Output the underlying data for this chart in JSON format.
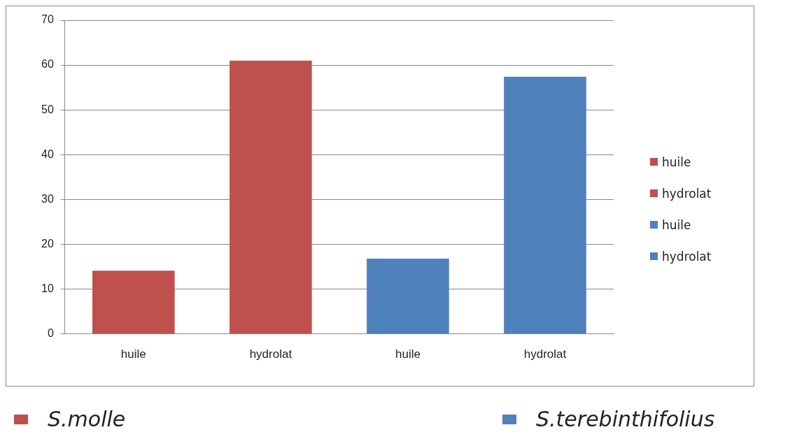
{
  "chart_data": {
    "type": "bar",
    "categories": [
      "huile",
      "hydrolat",
      "huile",
      "hydrolat"
    ],
    "series": [
      {
        "name": "S.molle",
        "color": "#c0504d",
        "values": [
          14.1,
          61,
          null,
          null
        ]
      },
      {
        "name": "S.terebinthifolius",
        "color": "#4f81bd",
        "values": [
          null,
          null,
          16.8,
          57.4
        ]
      }
    ],
    "ylim": [
      0,
      70
    ],
    "yticks": [
      0,
      10,
      20,
      30,
      40,
      50,
      60,
      70
    ],
    "grid": "y",
    "legend": "bottom"
  }
}
